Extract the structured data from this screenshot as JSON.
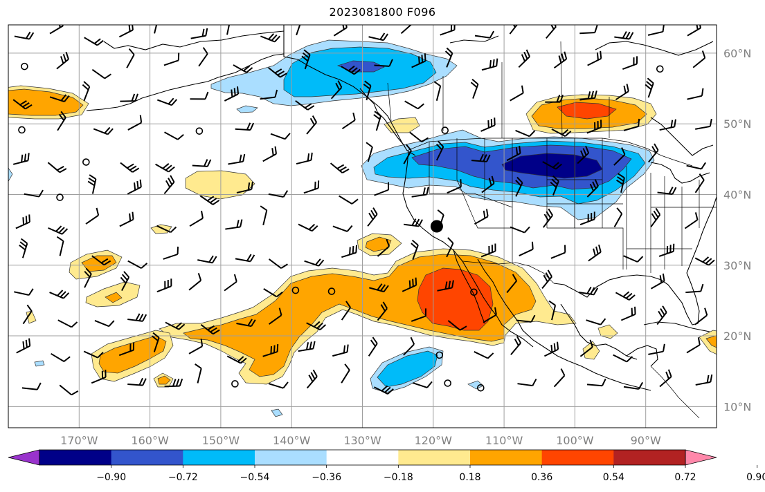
{
  "title": "2023081800 F096",
  "map": {
    "projection": "equirectangular",
    "lon_range": [
      -180,
      -80
    ],
    "lat_range": [
      7,
      64
    ],
    "lon_ticks": [
      {
        "value": -170,
        "label": "170°W"
      },
      {
        "value": -160,
        "label": "160°W"
      },
      {
        "value": -150,
        "label": "150°W"
      },
      {
        "value": -140,
        "label": "140°W"
      },
      {
        "value": -130,
        "label": "130°W"
      },
      {
        "value": -120,
        "label": "120°W"
      },
      {
        "value": -110,
        "label": "110°W"
      },
      {
        "value": -100,
        "label": "100°W"
      },
      {
        "value": -90,
        "label": "90°W"
      }
    ],
    "lat_ticks": [
      {
        "value": 60,
        "label": "60°N"
      },
      {
        "value": 50,
        "label": "50°N"
      },
      {
        "value": 40,
        "label": "40°N"
      },
      {
        "value": 30,
        "label": "30°N"
      },
      {
        "value": 20,
        "label": "20°N"
      },
      {
        "value": 10,
        "label": "10°N"
      }
    ],
    "gridlines": true,
    "colors": {
      "land_outline": "#000000",
      "grid": "#9e9e9e",
      "tick_label": "#808080"
    },
    "anomaly_regions": [
      {
        "name": "gulf-of-alaska-negative",
        "level": -0.54,
        "center": [
          -142,
          58.5
        ]
      },
      {
        "name": "pacific-northwest-negative",
        "level": -0.72,
        "center": [
          -110,
          44.5
        ]
      },
      {
        "name": "subtropical-pacific-positive",
        "level": 0.54,
        "center": [
          -127,
          27
        ]
      },
      {
        "name": "baja-positive",
        "level": 0.72,
        "center": [
          -116,
          27
        ]
      },
      {
        "name": "canada-positive",
        "level": 0.72,
        "center": [
          -101,
          52.5
        ]
      },
      {
        "name": "northwest-pacific-positive",
        "level": 0.36,
        "center": [
          -178,
          53.5
        ]
      },
      {
        "name": "tropical-pacific-negative",
        "level": -0.54,
        "center": [
          -123,
          16
        ]
      }
    ],
    "marker": {
      "name": "point-marker",
      "lon": -119.5,
      "lat": 35.5
    }
  },
  "colorbar": {
    "ticks": [
      "−0.90",
      "−0.72",
      "−0.54",
      "−0.36",
      "−0.18",
      "0.18",
      "0.36",
      "0.54",
      "0.72",
      "0.90"
    ],
    "colors": [
      "#9933cc",
      "#000088",
      "#3355cc",
      "#00bbf9",
      "#aadeff",
      "#ffffff",
      "#ffea8f",
      "#ffa500",
      "#ff4500",
      "#b22222",
      "#ff88aa"
    ],
    "extend": "both"
  }
}
